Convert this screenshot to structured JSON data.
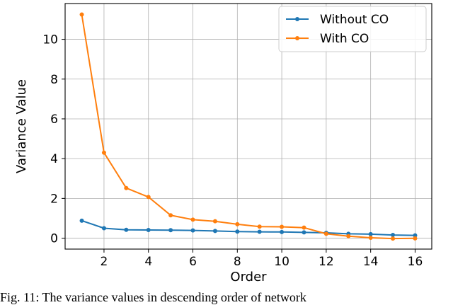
{
  "chart_data": {
    "type": "line",
    "xlabel": "Order",
    "ylabel": "Variance Value",
    "x": [
      1,
      2,
      3,
      4,
      5,
      6,
      7,
      8,
      9,
      10,
      11,
      12,
      13,
      14,
      15,
      16
    ],
    "xlim": [
      0.25,
      16.75
    ],
    "ylim": [
      -0.55,
      11.8
    ],
    "xticks": [
      2,
      4,
      6,
      8,
      10,
      12,
      14,
      16
    ],
    "yticks": [
      0,
      2,
      4,
      6,
      8,
      10
    ],
    "grid": true,
    "legend_position": "top-right",
    "series": [
      {
        "name": "Without CO",
        "color": "#1f77b4",
        "values": [
          0.88,
          0.5,
          0.42,
          0.41,
          0.4,
          0.39,
          0.36,
          0.33,
          0.32,
          0.31,
          0.29,
          0.27,
          0.22,
          0.2,
          0.16,
          0.14
        ]
      },
      {
        "name": "With CO",
        "color": "#ff7f0e",
        "values": [
          11.25,
          4.3,
          2.52,
          2.07,
          1.15,
          0.93,
          0.85,
          0.7,
          0.58,
          0.57,
          0.53,
          0.22,
          0.1,
          0.02,
          -0.02,
          -0.01
        ]
      }
    ]
  },
  "caption": "Fig. 11: The variance values in descending order of network"
}
